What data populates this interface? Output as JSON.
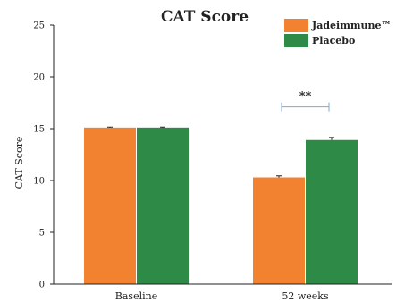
{
  "chart_data": {
    "type": "bar",
    "title": "CAT Score",
    "xlabel": "",
    "ylabel": "CAT Score",
    "ylim": [
      0,
      25
    ],
    "yticks": [
      0,
      5,
      10,
      15,
      20,
      25
    ],
    "categories": [
      "Baseline",
      "52 weeks"
    ],
    "series": [
      {
        "name": "Jadeimmune™",
        "values": [
          15.1,
          10.3
        ],
        "errors": [
          0.05,
          0.15
        ],
        "color": "#f28130"
      },
      {
        "name": "Placebo",
        "values": [
          15.1,
          13.9
        ],
        "errors": [
          0.05,
          0.25
        ],
        "color": "#2e8b47"
      }
    ],
    "annotations": [
      {
        "text": "**",
        "category": "52 weeks",
        "y": 17.1,
        "color": "#7fa7d8"
      }
    ],
    "grid": false,
    "legend_position": "top-right"
  }
}
